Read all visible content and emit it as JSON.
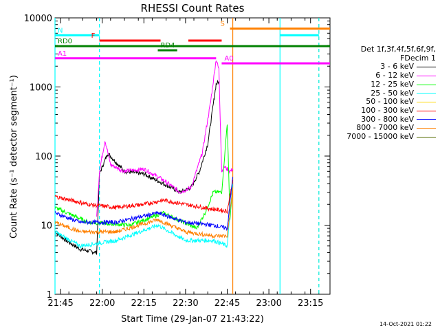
{
  "chart_data": {
    "type": "line",
    "title": "RHESSI Count Rates",
    "xlabel": "Start Time (29-Jan-07 21:43:22)",
    "ylabel": "Count Rate (s⁻¹ detector segment⁻¹)",
    "x_unit": "minutes",
    "xlim": [
      "21:43",
      "23:22"
    ],
    "ylim": [
      1,
      10000
    ],
    "yscale": "log",
    "x_ticks": [
      "21:45",
      "22:00",
      "22:15",
      "22:30",
      "22:45",
      "23:00",
      "23:15"
    ],
    "y_ticks": [
      "1",
      "10",
      "100",
      "1000",
      "10000"
    ],
    "legend_position": "right",
    "legend_header": [
      "Det 1f,3f,4f,5f,6f,9f,",
      "FDecim 1"
    ],
    "series": [
      {
        "name": "3 - 6 keV",
        "color": "#000000",
        "x": [
          "21:43",
          "21:47",
          "21:52",
          "21:58",
          "21:59",
          "22:02",
          "22:08",
          "22:15",
          "22:22",
          "22:28",
          "22:32",
          "22:35",
          "22:38",
          "22:41",
          "22:42"
        ],
        "values": [
          8,
          6,
          4.5,
          4,
          55,
          110,
          60,
          55,
          40,
          30,
          35,
          60,
          150,
          1100,
          1200
        ]
      },
      {
        "name": "6 - 12 keV",
        "color": "#ff00ff",
        "x": [
          "21:58",
          "21:59",
          "22:01",
          "22:03",
          "22:08",
          "22:15",
          "22:22",
          "22:28",
          "22:32",
          "22:36",
          "22:39",
          "22:41",
          "22:42",
          "22:43",
          "22:44",
          "22:46",
          "22:47"
        ],
        "values": [
          13,
          60,
          170,
          75,
          60,
          65,
          45,
          30,
          35,
          110,
          600,
          2500,
          1800,
          60,
          70,
          60,
          65
        ]
      },
      {
        "name": "12 - 25 keV",
        "color": "#00ff00",
        "x": [
          "21:43",
          "21:55",
          "22:10",
          "22:22",
          "22:34",
          "22:37",
          "22:40",
          "22:43",
          "22:45",
          "22:46",
          "22:47"
        ],
        "values": [
          18,
          11,
          10,
          15,
          9,
          15,
          30,
          30,
          300,
          12,
          40
        ]
      },
      {
        "name": "25 - 50 keV",
        "color": "#00ffff",
        "x": [
          "21:43",
          "21:52",
          "22:05",
          "22:20",
          "22:30",
          "22:40",
          "22:45",
          "22:47"
        ],
        "values": [
          8,
          5,
          6,
          10,
          6,
          6,
          5,
          40
        ]
      },
      {
        "name": "50 - 100 keV",
        "color": "#ffd700",
        "x": [],
        "values": []
      },
      {
        "name": "100 - 300 keV",
        "color": "#ff0000",
        "x": [
          "21:43",
          "21:55",
          "22:05",
          "22:15",
          "22:22",
          "22:30",
          "22:40",
          "22:45",
          "22:47"
        ],
        "values": [
          26,
          20,
          18,
          20,
          23,
          20,
          17,
          16,
          45
        ]
      },
      {
        "name": "300 - 800 keV",
        "color": "#0000ff",
        "x": [
          "21:43",
          "21:52",
          "22:05",
          "22:20",
          "22:30",
          "22:40",
          "22:45",
          "22:47"
        ],
        "values": [
          15,
          11,
          11,
          15,
          11,
          10,
          9,
          50
        ]
      },
      {
        "name": "800 - 7000 keV",
        "color": "#ff8000",
        "x": [
          "21:43",
          "21:52",
          "22:05",
          "22:20",
          "22:30",
          "22:40",
          "22:45",
          "22:47"
        ],
        "values": [
          11,
          8,
          8,
          12,
          8,
          7,
          7,
          35
        ]
      },
      {
        "name": "7000 - 15000 keV",
        "color": "#556b00",
        "x": [],
        "values": []
      }
    ],
    "flag_bars": [
      {
        "label": "N",
        "color": "#00ffff",
        "segments": [
          [
            "21:43",
            "21:59"
          ],
          [
            "23:04",
            "23:18"
          ]
        ],
        "level": 5600
      },
      {
        "label": "S",
        "color": "#ff8000",
        "segments": [
          [
            "22:46",
            "23:22"
          ]
        ],
        "level": 7000
      },
      {
        "label": "F",
        "color": "#ff0000",
        "segments": [
          [
            "21:59",
            "22:21"
          ],
          [
            "22:31",
            "22:43"
          ]
        ],
        "level": 4700
      },
      {
        "label": "RD0",
        "color": "#008000",
        "segments": [
          [
            "21:43",
            "23:22"
          ]
        ],
        "level": 3900
      },
      {
        "label": "RD4",
        "color": "#008000",
        "segments": [
          [
            "22:20",
            "22:27"
          ]
        ],
        "level": 3400
      },
      {
        "label": "A1",
        "color": "#ff00ff",
        "segments": [
          [
            "21:43",
            "22:41"
          ]
        ],
        "level": 2600
      },
      {
        "label": "A0",
        "color": "#ff00ff",
        "segments": [
          [
            "22:43",
            "23:22"
          ]
        ],
        "level": 2200
      }
    ],
    "vlines": [
      {
        "x": "21:43",
        "color": "#00ffff",
        "style": "solid"
      },
      {
        "x": "21:59",
        "color": "#00ffff",
        "style": "dashed"
      },
      {
        "x": "22:47",
        "color": "#ff8000",
        "style": "solid"
      },
      {
        "x": "23:04",
        "color": "#00ffff",
        "style": "solid"
      },
      {
        "x": "23:18",
        "color": "#ff8000",
        "style": "dashed"
      },
      {
        "x": "23:18",
        "color": "#00ffff",
        "style": "dashed"
      }
    ]
  },
  "timestamp": "14-Oct-2021 01:22"
}
